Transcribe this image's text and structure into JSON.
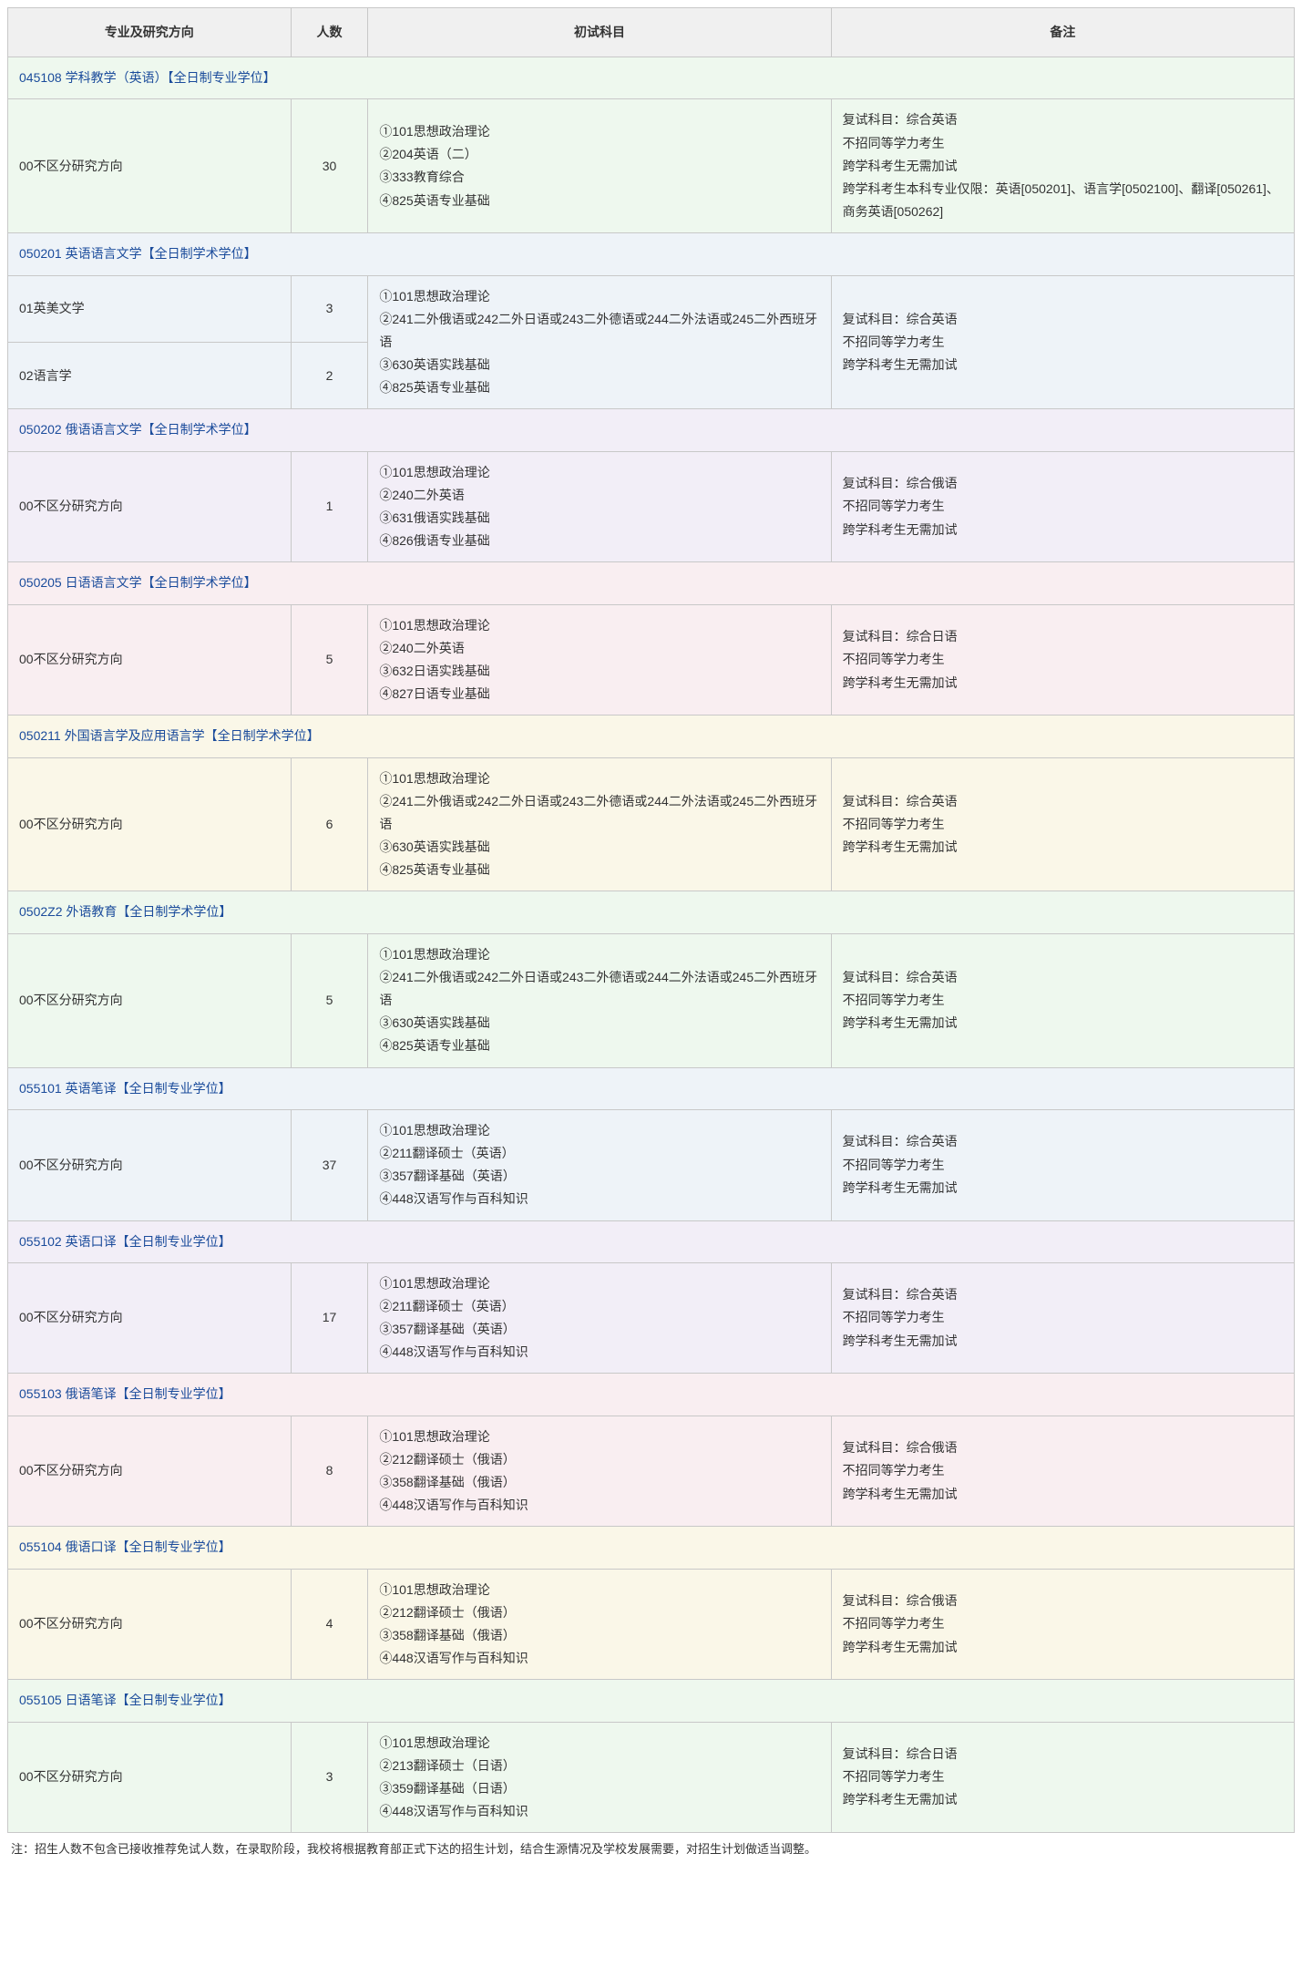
{
  "headers": {
    "major": "专业及研究方向",
    "count": "人数",
    "exam": "初试科目",
    "notes": "备注"
  },
  "tints": [
    "tint-green",
    "tint-blue",
    "tint-purple",
    "tint-pink",
    "tint-yellow",
    "tint-green",
    "tint-blue",
    "tint-purple",
    "tint-pink",
    "tint-yellow",
    "tint-green"
  ],
  "sections": [
    {
      "title": "045108 学科教学（英语）【全日制专业学位】",
      "rows": [
        {
          "major": "00不区分研究方向",
          "count": "30",
          "exam": "①101思想政治理论\n②204英语（二）\n③333教育综合\n④825英语专业基础",
          "notes": "复试科目：综合英语\n不招同等学力考生\n跨学科考生无需加试\n跨学科考生本科专业仅限：英语[050201]、语言学[0502100]、翻译[050261]、商务英语[050262]"
        }
      ]
    },
    {
      "title": "050201 英语语言文学【全日制学术学位】",
      "sharedExam": "①101思想政治理论\n②241二外俄语或242二外日语或243二外德语或244二外法语或245二外西班牙语\n③630英语实践基础\n④825英语专业基础",
      "sharedNotes": "复试科目：综合英语\n不招同等学力考生\n跨学科考生无需加试",
      "rows": [
        {
          "major": "01英美文学",
          "count": "3"
        },
        {
          "major": "02语言学",
          "count": "2"
        }
      ]
    },
    {
      "title": "050202 俄语语言文学【全日制学术学位】",
      "rows": [
        {
          "major": "00不区分研究方向",
          "count": "1",
          "exam": "①101思想政治理论\n②240二外英语\n③631俄语实践基础\n④826俄语专业基础",
          "notes": "复试科目：综合俄语\n不招同等学力考生\n跨学科考生无需加试"
        }
      ]
    },
    {
      "title": "050205 日语语言文学【全日制学术学位】",
      "rows": [
        {
          "major": "00不区分研究方向",
          "count": "5",
          "exam": "①101思想政治理论\n②240二外英语\n③632日语实践基础\n④827日语专业基础",
          "notes": "复试科目：综合日语\n不招同等学力考生\n跨学科考生无需加试"
        }
      ]
    },
    {
      "title": "050211 外国语言学及应用语言学【全日制学术学位】",
      "rows": [
        {
          "major": "00不区分研究方向",
          "count": "6",
          "exam": "①101思想政治理论\n②241二外俄语或242二外日语或243二外德语或244二外法语或245二外西班牙语\n③630英语实践基础\n④825英语专业基础",
          "notes": "复试科目：综合英语\n不招同等学力考生\n跨学科考生无需加试"
        }
      ]
    },
    {
      "title": "0502Z2 外语教育【全日制学术学位】",
      "rows": [
        {
          "major": "00不区分研究方向",
          "count": "5",
          "exam": "①101思想政治理论\n②241二外俄语或242二外日语或243二外德语或244二外法语或245二外西班牙语\n③630英语实践基础\n④825英语专业基础",
          "notes": "复试科目：综合英语\n不招同等学力考生\n跨学科考生无需加试"
        }
      ]
    },
    {
      "title": "055101 英语笔译【全日制专业学位】",
      "rows": [
        {
          "major": "00不区分研究方向",
          "count": "37",
          "exam": "①101思想政治理论\n②211翻译硕士（英语）\n③357翻译基础（英语）\n④448汉语写作与百科知识",
          "notes": "复试科目：综合英语\n不招同等学力考生\n跨学科考生无需加试"
        }
      ]
    },
    {
      "title": "055102 英语口译【全日制专业学位】",
      "rows": [
        {
          "major": "00不区分研究方向",
          "count": "17",
          "exam": "①101思想政治理论\n②211翻译硕士（英语）\n③357翻译基础（英语）\n④448汉语写作与百科知识",
          "notes": "复试科目：综合英语\n不招同等学力考生\n跨学科考生无需加试"
        }
      ]
    },
    {
      "title": "055103 俄语笔译【全日制专业学位】",
      "rows": [
        {
          "major": "00不区分研究方向",
          "count": "8",
          "exam": "①101思想政治理论\n②212翻译硕士（俄语）\n③358翻译基础（俄语）\n④448汉语写作与百科知识",
          "notes": "复试科目：综合俄语\n不招同等学力考生\n跨学科考生无需加试"
        }
      ]
    },
    {
      "title": "055104 俄语口译【全日制专业学位】",
      "rows": [
        {
          "major": "00不区分研究方向",
          "count": "4",
          "exam": "①101思想政治理论\n②212翻译硕士（俄语）\n③358翻译基础（俄语）\n④448汉语写作与百科知识",
          "notes": "复试科目：综合俄语\n不招同等学力考生\n跨学科考生无需加试"
        }
      ]
    },
    {
      "title": "055105 日语笔译【全日制专业学位】",
      "rows": [
        {
          "major": "00不区分研究方向",
          "count": "3",
          "exam": "①101思想政治理论\n②213翻译硕士（日语）\n③359翻译基础（日语）\n④448汉语写作与百科知识",
          "notes": "复试科目：综合日语\n不招同等学力考生\n跨学科考生无需加试"
        }
      ]
    }
  ],
  "footnote": "注：招生人数不包含已接收推荐免试人数，在录取阶段，我校将根据教育部正式下达的招生计划，结合生源情况及学校发展需要，对招生计划做适当调整。"
}
